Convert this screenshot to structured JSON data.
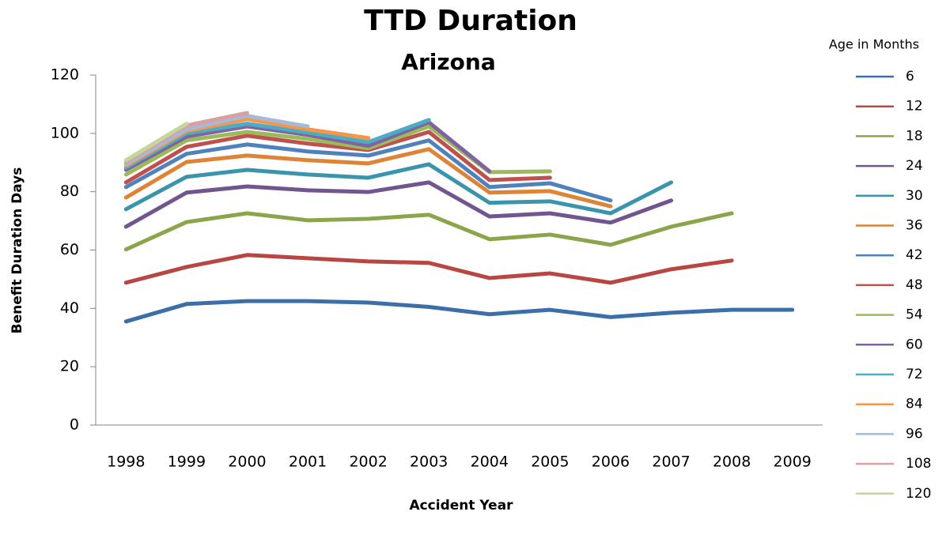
{
  "chart_data": {
    "type": "line",
    "title": "TTD Duration",
    "subtitle": "Arizona",
    "x_label": "Accident Year",
    "y_label": "Benefit Duration Days",
    "legend_title": "Age in Months",
    "categories": [
      "1998",
      "1999",
      "2000",
      "2001",
      "2002",
      "2003",
      "2004",
      "2005",
      "2006",
      "2007",
      "2008",
      "2009"
    ],
    "ylim": [
      0,
      120
    ],
    "yticks": [
      0,
      20,
      40,
      60,
      80,
      100,
      120
    ],
    "legend": "right",
    "series": [
      {
        "name": "6",
        "color": "#3c6ea8",
        "values": [
          35.5,
          41.5,
          42.5,
          42.5,
          42,
          40.5,
          38,
          39.5,
          37,
          38.5,
          39.5,
          39.5
        ]
      },
      {
        "name": "12",
        "color": "#b84643",
        "values": [
          48.8,
          54.2,
          58.3,
          57.2,
          56.1,
          55.6,
          50.4,
          52,
          48.8,
          53.4,
          56.4,
          null
        ]
      },
      {
        "name": "18",
        "color": "#8ba54a",
        "values": [
          60.2,
          69.6,
          72.6,
          70.2,
          70.7,
          72.1,
          63.7,
          65.3,
          61.8,
          68,
          72.6,
          null
        ]
      },
      {
        "name": "24",
        "color": "#71558f",
        "values": [
          68,
          79.7,
          81.8,
          80.5,
          79.9,
          83.2,
          71.5,
          72.6,
          69.4,
          77,
          null,
          null
        ]
      },
      {
        "name": "30",
        "color": "#3a95ac",
        "values": [
          74,
          85.1,
          87.5,
          85.9,
          84.8,
          89.4,
          76.2,
          76.7,
          72.6,
          83.2,
          null,
          null
        ]
      },
      {
        "name": "36",
        "color": "#dd8437",
        "values": [
          78,
          90.2,
          92.4,
          90.8,
          89.7,
          94.6,
          79.7,
          80.2,
          75,
          null,
          null,
          null
        ]
      },
      {
        "name": "42",
        "color": "#4f81bd",
        "values": [
          81.6,
          93,
          96.2,
          93.8,
          92.4,
          97.6,
          81.6,
          82.9,
          77,
          null,
          null,
          null
        ]
      },
      {
        "name": "48",
        "color": "#c0504d",
        "values": [
          83.2,
          95.4,
          99.2,
          96.5,
          94.3,
          100.5,
          84,
          84.8,
          null,
          null,
          null,
          null
        ]
      },
      {
        "name": "54",
        "color": "#9bbb59",
        "values": [
          85.9,
          97.6,
          100.5,
          98.1,
          94.9,
          102.4,
          86.7,
          87,
          null,
          null,
          null,
          null
        ]
      },
      {
        "name": "60",
        "color": "#8064a2",
        "values": [
          87.5,
          98.9,
          102.4,
          99.5,
          95.7,
          103.8,
          87,
          null,
          null,
          null,
          null,
          null
        ]
      },
      {
        "name": "72",
        "color": "#4bacc6",
        "values": [
          88.3,
          100,
          103.3,
          100.3,
          97,
          104.6,
          null,
          null,
          null,
          null,
          null,
          null
        ]
      },
      {
        "name": "84",
        "color": "#f79646",
        "values": [
          88.9,
          100.8,
          104.9,
          101.4,
          98.4,
          null,
          null,
          null,
          null,
          null,
          null,
          null
        ]
      },
      {
        "name": "96",
        "color": "#a5b9d8",
        "values": [
          89.4,
          101.4,
          106,
          102.4,
          null,
          null,
          null,
          null,
          null,
          null,
          null,
          null
        ]
      },
      {
        "name": "108",
        "color": "#d9a0a0",
        "values": [
          90.2,
          102.7,
          107,
          null,
          null,
          null,
          null,
          null,
          null,
          null,
          null,
          null
        ]
      },
      {
        "name": "120",
        "color": "#c3d69b",
        "values": [
          90.8,
          103.3,
          null,
          null,
          null,
          null,
          null,
          null,
          null,
          null,
          null,
          null
        ]
      }
    ]
  }
}
